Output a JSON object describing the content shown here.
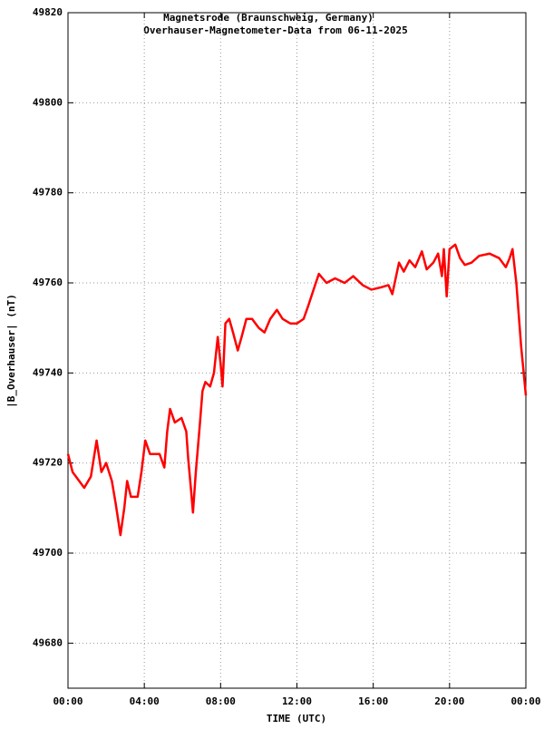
{
  "chart_data": {
    "type": "line",
    "title": "Magnetsrode (Braunschweig, Germany)",
    "subtitle": "Overhauser-Magnetometer-Data from 06-11-2025",
    "x_label": "TIME (UTC)",
    "y_label": "|B_Overhauser| (nT)",
    "xlim": [
      0,
      24
    ],
    "xticks": [
      {
        "value": 0,
        "label": "00:00"
      },
      {
        "value": 4,
        "label": "04:00"
      },
      {
        "value": 8,
        "label": "08:00"
      },
      {
        "value": 12,
        "label": "12:00"
      },
      {
        "value": 16,
        "label": "16:00"
      },
      {
        "value": 20,
        "label": "20:00"
      },
      {
        "value": 24,
        "label": "00:00"
      }
    ],
    "ylim": [
      49670,
      49820
    ],
    "yticks": [
      49680,
      49700,
      49720,
      49740,
      49760,
      49780,
      49800,
      49820
    ],
    "grid": true,
    "x": [
      0.0,
      0.24,
      0.5,
      0.85,
      1.2,
      1.5,
      1.75,
      2.0,
      2.3,
      2.5,
      2.75,
      2.95,
      3.1,
      3.3,
      3.65,
      3.85,
      4.05,
      4.3,
      4.5,
      4.8,
      5.05,
      5.2,
      5.35,
      5.6,
      5.95,
      6.2,
      6.3,
      6.45,
      6.55,
      6.7,
      6.9,
      7.05,
      7.2,
      7.45,
      7.65,
      7.85,
      8.0,
      8.1,
      8.25,
      8.45,
      8.65,
      8.9,
      9.1,
      9.35,
      9.65,
      10.0,
      10.3,
      10.6,
      10.95,
      11.25,
      11.65,
      12.0,
      12.35,
      12.6,
      12.95,
      13.15,
      13.55,
      14.0,
      14.5,
      14.95,
      15.45,
      15.9,
      16.4,
      16.8,
      17.0,
      17.35,
      17.6,
      17.9,
      18.2,
      18.55,
      18.8,
      19.15,
      19.4,
      19.6,
      19.7,
      19.85,
      20.0,
      20.3,
      20.55,
      20.8,
      21.15,
      21.55,
      22.1,
      22.6,
      22.95,
      23.15,
      23.3,
      23.5,
      23.75,
      24.0
    ],
    "series": [
      {
        "name": "|B_Overhauser|",
        "color": "#ff0000",
        "values": [
          49722,
          49718,
          49716.5,
          49714.5,
          49717,
          49725,
          49718,
          49720,
          49716,
          49711,
          49704,
          49710,
          49716,
          49712.5,
          49712.5,
          49718,
          49725,
          49722,
          49722,
          49722,
          49719,
          49727,
          49732,
          49729,
          49730,
          49727,
          49721,
          49714,
          49709,
          49718,
          49728,
          49736,
          49738,
          49737,
          49740,
          49748,
          49742,
          49737,
          49751,
          49752,
          49749,
          49745,
          49748,
          49752,
          49752,
          49750,
          49749,
          49752,
          49754,
          49752,
          49751,
          49751,
          49752,
          49755,
          49759.5,
          49762,
          49760,
          49761,
          49760,
          49761.5,
          49759.5,
          49758.5,
          49759,
          49759.5,
          49757.5,
          49764.5,
          49762.5,
          49765,
          49763.5,
          49767,
          49763,
          49764.5,
          49766.5,
          49761.5,
          49767.5,
          49757,
          49767.5,
          49768.5,
          49765.5,
          49764,
          49764.5,
          49766,
          49766.5,
          49765.5,
          49763.5,
          49765.5,
          49767.5,
          49760,
          49746,
          49735
        ]
      }
    ]
  }
}
